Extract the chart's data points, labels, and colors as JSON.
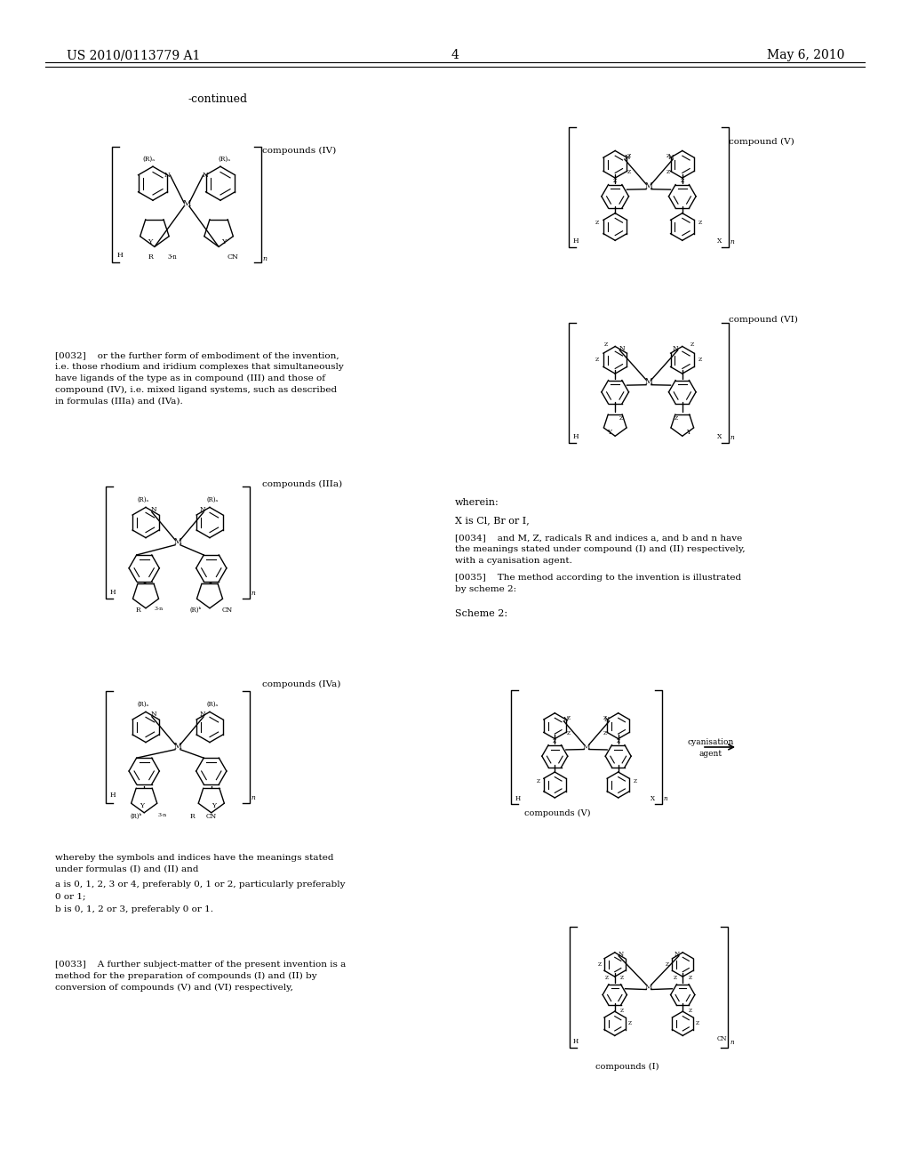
{
  "page_number": "4",
  "patent_number": "US 2010/0113779 A1",
  "patent_date": "May 6, 2010",
  "continued_label": "-continued",
  "background_color": "#ffffff",
  "text_color": "#000000",
  "font_size_header": 11,
  "font_size_body": 7.5,
  "font_size_label": 7,
  "compound_labels": {
    "IV": "compounds (IV)",
    "IIIa": "compounds (IIIa)",
    "IVa": "compounds (IVa)",
    "V": "compound (V)",
    "VI": "compound (VI)",
    "scheme2_V": "compounds (V)",
    "scheme2_I": "compounds (I)"
  },
  "paragraph_0032": "[0032] or the further form of embodiment of the invention, i.e. those rhodium and iridium complexes that simultaneously have ligands of the type as in compound (III) and those of compound (IV), i.e. mixed ligand systems, such as described in formulas (IIIa) and (IVa).",
  "wherein_text": "wherein:",
  "X_text": "X is Cl, Br or I,",
  "paragraph_0034": "[0034] and M, Z, radicals R and indices a, and b and n have the meanings stated under compound (I) and (II) respectively, with a cyanisation agent.",
  "paragraph_0035": "[0035] The method according to the invention is illustrated by scheme 2:",
  "scheme2_label": "Scheme 2:",
  "cyanisation_label": "cyanisation\nagent",
  "paragraph_0033_start": "whereby the symbols and indices have the meanings stated\nunder formulas (I) and (II) and",
  "paragraph_0033_a": "a is 0, 1, 2, 3 or 4, preferably 0, 1 or 2, particularly preferably\n0 or 1;",
  "paragraph_0033_b": "b is 0, 1, 2 or 3, preferably 0 or 1.",
  "paragraph_0033_end": "[0033] A further subject-matter of the present invention is a method for the preparation of compounds (I) and (II) by conversion of compounds (V) and (VI) respectively,"
}
